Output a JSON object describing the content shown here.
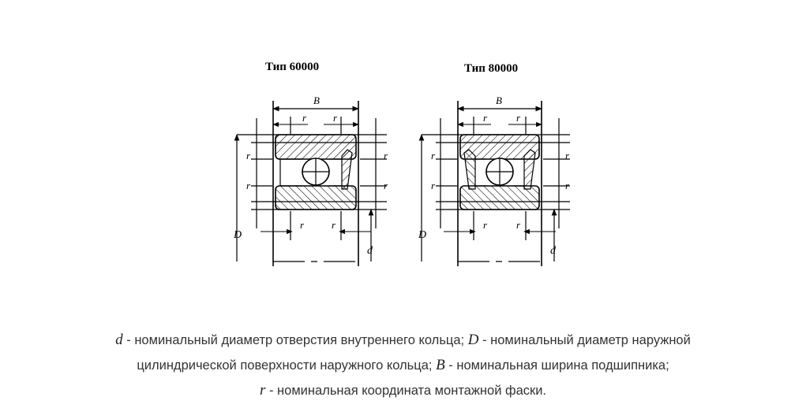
{
  "figures": [
    {
      "title": "Тип 60000",
      "label_B": "B",
      "label_r": "r",
      "label_D": "D",
      "label_d": "d"
    },
    {
      "title": "Тип 80000",
      "label_B": "B",
      "label_r": "r",
      "label_D": "D",
      "label_d": "d"
    }
  ],
  "caption": {
    "line1": {
      "sym1": "d",
      "text1": " - номинальный диаметр отверстия внутреннего кольца; ",
      "sym2": "D",
      "text2": " - номинальный диаметр наружной"
    },
    "line2": {
      "text1": "цилиндрической поверхности наружного кольца; ",
      "sym1": "B",
      "text2": " - номинальная ширина подшипника;"
    },
    "line3": {
      "sym1": "r",
      "text1": " - номинальная координата монтажной фаски."
    }
  }
}
